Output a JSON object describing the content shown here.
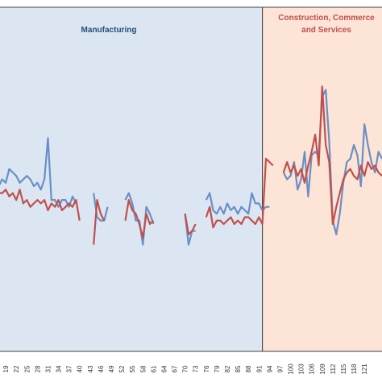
{
  "colors": {
    "manufacturing_bg": "#DCE6F2",
    "services_bg": "#FCE4D6",
    "panel_border": "#404040",
    "series_blue": "#6A8FC6",
    "series_red": "#C0504D",
    "manufacturing_text": "#1F4E79",
    "services_text": "#C0504D"
  },
  "chart_data": {
    "type": "line",
    "title": "",
    "xlabel": "",
    "ylabel": "",
    "x_range": [
      16,
      126
    ],
    "y_range": [
      0,
      100
    ],
    "grid": false,
    "legend": "none",
    "tick_labels": [
      "19",
      "22",
      "25",
      "28",
      "31",
      "34",
      "37",
      "40",
      "43",
      "46",
      "49",
      "52",
      "55",
      "58",
      "61",
      "64",
      "67",
      "70",
      "73",
      "76",
      "79",
      "82",
      "85",
      "88",
      "91",
      "94",
      "97",
      "100",
      "103",
      "106",
      "109",
      "112",
      "115",
      "118",
      "121"
    ],
    "regions": [
      {
        "label": "Manufacturing",
        "x_from": 16,
        "x_to": 92
      },
      {
        "label": "Construction, Commerce\nand Services",
        "x_from": 92,
        "x_to": 126
      }
    ],
    "series": [
      {
        "color": "series_blue",
        "points": [
          [
            16,
            47
          ],
          [
            17,
            48
          ],
          [
            18,
            50
          ],
          [
            19,
            49
          ],
          [
            20,
            53
          ],
          [
            21,
            52
          ],
          [
            22,
            51
          ],
          [
            23,
            49
          ],
          [
            24,
            50
          ],
          [
            25,
            51
          ],
          [
            26,
            50
          ],
          [
            27,
            48
          ],
          [
            28,
            49
          ],
          [
            29,
            47
          ],
          [
            30,
            50
          ],
          [
            31,
            62
          ],
          [
            32,
            44
          ],
          [
            33,
            44
          ],
          [
            34,
            42
          ],
          [
            35,
            44
          ],
          [
            36,
            44
          ],
          [
            37,
            42
          ],
          [
            38,
            45
          ],
          [
            39,
            43
          ],
          null,
          [
            44,
            46
          ],
          [
            45,
            39
          ],
          [
            46,
            38
          ],
          [
            47,
            38
          ],
          [
            48,
            42
          ],
          null,
          [
            53,
            44
          ],
          [
            54,
            46
          ],
          [
            55,
            43
          ],
          [
            56,
            38
          ],
          [
            57,
            38
          ],
          [
            58,
            31
          ],
          [
            59,
            42
          ],
          [
            60,
            40
          ],
          [
            61,
            37
          ],
          null,
          [
            70,
            40
          ],
          [
            71,
            31
          ],
          [
            72,
            35
          ],
          [
            73,
            35
          ],
          null,
          [
            76,
            44
          ],
          [
            77,
            46
          ],
          [
            78,
            41
          ],
          [
            79,
            40
          ],
          [
            80,
            42
          ],
          [
            81,
            40
          ],
          [
            82,
            43
          ],
          [
            83,
            41
          ],
          [
            84,
            42
          ],
          [
            85,
            40
          ],
          [
            86,
            42
          ],
          [
            87,
            41
          ],
          [
            88,
            40
          ],
          [
            89,
            46
          ],
          [
            90,
            43
          ],
          [
            91,
            43
          ],
          [
            92,
            41
          ],
          [
            93,
            42
          ],
          [
            94,
            42
          ],
          null,
          [
            98,
            52
          ],
          [
            99,
            50
          ],
          [
            100,
            51
          ],
          [
            101,
            55
          ],
          [
            102,
            47
          ],
          [
            103,
            50
          ],
          [
            104,
            58
          ],
          [
            105,
            45
          ],
          [
            106,
            57
          ],
          [
            107,
            58
          ],
          [
            108,
            57
          ],
          [
            109,
            74
          ],
          [
            110,
            76
          ],
          [
            111,
            61
          ],
          [
            112,
            38
          ],
          [
            113,
            34
          ],
          [
            114,
            40
          ],
          [
            115,
            49
          ],
          [
            116,
            55
          ],
          [
            117,
            56
          ],
          [
            118,
            60
          ],
          [
            119,
            57
          ],
          [
            120,
            48
          ],
          [
            121,
            66
          ],
          [
            122,
            60
          ],
          [
            123,
            55
          ],
          [
            124,
            52
          ],
          [
            125,
            58
          ],
          [
            126,
            56
          ]
        ]
      },
      {
        "color": "series_red",
        "points": [
          [
            16,
            45
          ],
          [
            17,
            46
          ],
          [
            18,
            46
          ],
          [
            19,
            47
          ],
          [
            20,
            45
          ],
          [
            21,
            46
          ],
          [
            22,
            44
          ],
          [
            23,
            47
          ],
          [
            24,
            43
          ],
          [
            25,
            44
          ],
          [
            26,
            42
          ],
          [
            27,
            43
          ],
          [
            28,
            44
          ],
          [
            29,
            43
          ],
          [
            30,
            44
          ],
          [
            31,
            41
          ],
          [
            32,
            43
          ],
          [
            33,
            42
          ],
          [
            34,
            44
          ],
          [
            35,
            41
          ],
          [
            36,
            42
          ],
          [
            37,
            43
          ],
          [
            38,
            42
          ],
          [
            39,
            44
          ],
          [
            40,
            38
          ],
          null,
          [
            44,
            31
          ],
          [
            45,
            44
          ],
          [
            46,
            40
          ],
          [
            47,
            38
          ],
          null,
          [
            53,
            38
          ],
          [
            54,
            44
          ],
          [
            55,
            41
          ],
          [
            56,
            40
          ],
          [
            57,
            37
          ],
          [
            58,
            33
          ],
          [
            59,
            40
          ],
          [
            60,
            37
          ],
          [
            61,
            38
          ],
          null,
          [
            70,
            40
          ],
          [
            71,
            34
          ],
          [
            72,
            35
          ],
          [
            73,
            37
          ],
          null,
          [
            76,
            39
          ],
          [
            77,
            42
          ],
          [
            78,
            36
          ],
          [
            79,
            38
          ],
          [
            80,
            38
          ],
          [
            81,
            37
          ],
          [
            82,
            38
          ],
          [
            83,
            39
          ],
          [
            84,
            37
          ],
          [
            85,
            38
          ],
          [
            86,
            37
          ],
          [
            87,
            39
          ],
          [
            88,
            39
          ],
          [
            89,
            38
          ],
          [
            90,
            37
          ],
          [
            91,
            39
          ],
          [
            92,
            37
          ],
          [
            93,
            56
          ],
          [
            94,
            55
          ],
          [
            95,
            54
          ],
          null,
          [
            98,
            52
          ],
          [
            99,
            55
          ],
          [
            100,
            52
          ],
          [
            101,
            54
          ],
          [
            102,
            51
          ],
          [
            103,
            53
          ],
          [
            104,
            49
          ],
          [
            105,
            54
          ],
          [
            106,
            58
          ],
          [
            107,
            63
          ],
          [
            108,
            54
          ],
          [
            109,
            77
          ],
          [
            110,
            60
          ],
          [
            111,
            55
          ],
          [
            112,
            37
          ],
          [
            113,
            42
          ],
          [
            114,
            46
          ],
          [
            115,
            50
          ],
          [
            116,
            52
          ],
          [
            117,
            53
          ],
          [
            118,
            51
          ],
          [
            119,
            50
          ],
          [
            120,
            54
          ],
          [
            121,
            51
          ],
          [
            122,
            55
          ],
          [
            123,
            53
          ],
          [
            124,
            54
          ],
          [
            125,
            52
          ],
          [
            126,
            51
          ]
        ]
      }
    ]
  }
}
